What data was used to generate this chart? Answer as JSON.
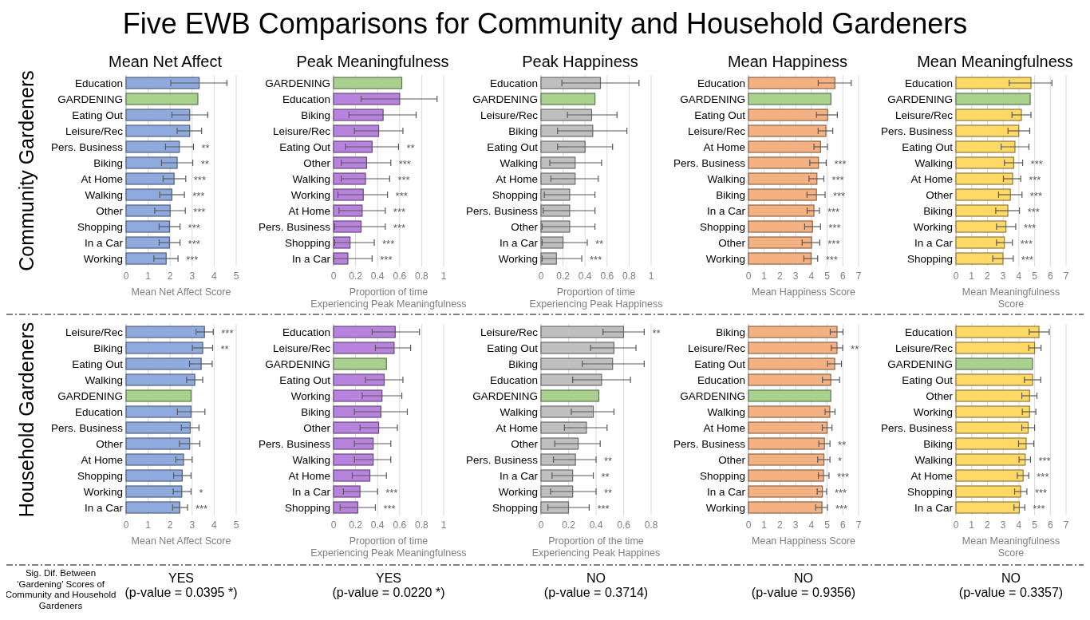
{
  "chart_data": [
    {
      "type": "bar",
      "orientation": "horizontal",
      "title": "Five EWB Comparisons for Community and Household Gardeners",
      "subtitle": "Mean Net Affect",
      "ylabel": "Community Gardeners",
      "xlabel": "Mean Net Affect Score",
      "grid": "x",
      "xlim": [
        0,
        5
      ],
      "xticks": [
        0,
        1,
        2,
        3,
        4,
        5
      ],
      "categories": [
        "Education",
        "GARDENING",
        "Eating Out",
        "Leisure/Rec",
        "Pers. Business",
        "Biking",
        "At Home",
        "Walking",
        "Other",
        "Shopping",
        "In a Car",
        "Working"
      ],
      "values": [
        3.32,
        3.26,
        2.89,
        2.89,
        2.42,
        2.32,
        2.18,
        2.08,
        2.0,
        1.97,
        1.97,
        1.82
      ],
      "errors": [
        [
          2.03,
          4.58
        ],
        null,
        [
          2.08,
          3.71
        ],
        [
          2.32,
          3.43
        ],
        [
          1.79,
          3.06
        ],
        [
          1.61,
          3.03
        ],
        [
          1.68,
          2.71
        ],
        [
          1.53,
          2.65
        ],
        [
          1.3,
          2.69
        ],
        [
          1.5,
          2.45
        ],
        [
          1.5,
          2.45
        ],
        [
          1.26,
          2.36
        ]
      ],
      "colors": [
        "#8faadc",
        "#a9d18e",
        "#8faadc",
        "#8faadc",
        "#8faadc",
        "#8faadc",
        "#8faadc",
        "#8faadc",
        "#8faadc",
        "#8faadc",
        "#8faadc",
        "#8faadc"
      ],
      "annotations": [
        {
          "text": "**",
          "x": 3.06,
          "y": "Pers. Business"
        },
        {
          "text": "**",
          "x": 3.03,
          "y": "Biking"
        },
        {
          "text": "***",
          "x": 2.71,
          "y": "At Home"
        },
        {
          "text": "***",
          "x": 2.65,
          "y": "Walking"
        },
        {
          "text": "***",
          "x": 2.69,
          "y": "Other"
        },
        {
          "text": "***",
          "x": 2.45,
          "y": "Shopping"
        },
        {
          "text": "***",
          "x": 2.45,
          "y": "In a Car"
        },
        {
          "text": "***",
          "x": 2.36,
          "y": "Working"
        }
      ]
    },
    {
      "type": "bar",
      "orientation": "horizontal",
      "title": "Peak Meaningfulness",
      "xlabel": "Proportion of time\nExperiencing Peak Meaningfulness",
      "grid": "x",
      "xlim": [
        0,
        1
      ],
      "xticks": [
        0,
        0.2,
        0.4,
        0.6,
        0.8,
        1
      ],
      "categories": [
        "GARDENING",
        "Education",
        "Biking",
        "Leisure/Rec",
        "Eating Out",
        "Other",
        "Walking",
        "Working",
        "At Home",
        "Pers. Business",
        "Shopping",
        "In a Car"
      ],
      "values": [
        0.62,
        0.6,
        0.45,
        0.41,
        0.35,
        0.3,
        0.29,
        0.27,
        0.26,
        0.25,
        0.15,
        0.13
      ],
      "errors": [
        null,
        [
          0.25,
          0.94
        ],
        [
          0.14,
          0.75
        ],
        [
          0.19,
          0.63
        ],
        [
          0.11,
          0.59
        ],
        [
          0.07,
          0.52
        ],
        [
          0.07,
          0.51
        ],
        [
          0.04,
          0.49
        ],
        [
          0.05,
          0.47
        ],
        [
          0.01,
          0.47
        ],
        [
          0.01,
          0.37
        ],
        [
          0.0,
          0.35
        ]
      ],
      "colors": [
        "#a9d18e",
        "#b883dc",
        "#b883dc",
        "#b883dc",
        "#b883dc",
        "#b883dc",
        "#b883dc",
        "#b883dc",
        "#b883dc",
        "#b883dc",
        "#b883dc",
        "#b883dc"
      ],
      "annotations": [
        {
          "text": "**",
          "x": 0.59,
          "y": "Eating Out"
        },
        {
          "text": "***",
          "x": 0.52,
          "y": "Other"
        },
        {
          "text": "***",
          "x": 0.51,
          "y": "Walking"
        },
        {
          "text": "***",
          "x": 0.49,
          "y": "Working"
        },
        {
          "text": "***",
          "x": 0.47,
          "y": "At Home"
        },
        {
          "text": "***",
          "x": 0.47,
          "y": "Pers. Business"
        },
        {
          "text": "***",
          "x": 0.37,
          "y": "Shopping"
        },
        {
          "text": "***",
          "x": 0.35,
          "y": "In a Car"
        }
      ]
    },
    {
      "type": "bar",
      "orientation": "horizontal",
      "title": "Peak Happiness",
      "xlabel": "Proportion of time\nExperiencing Peak Happiness",
      "grid": "x",
      "xlim": [
        0,
        1
      ],
      "xticks": [
        0,
        0.2,
        0.4,
        0.6,
        0.8,
        1
      ],
      "categories": [
        "Education",
        "GARDENING",
        "Leisure/Rec",
        "Biking",
        "Eating Out",
        "Walking",
        "At Home",
        "Shopping",
        "Pers. Business",
        "Other",
        "In a Car",
        "Working"
      ],
      "values": [
        0.54,
        0.49,
        0.46,
        0.47,
        0.4,
        0.31,
        0.31,
        0.26,
        0.26,
        0.26,
        0.2,
        0.14
      ],
      "errors": [
        [
          0.19,
          0.89
        ],
        null,
        [
          0.24,
          0.69
        ],
        [
          0.15,
          0.78
        ],
        [
          0.15,
          0.65
        ],
        [
          0.08,
          0.55
        ],
        [
          0.09,
          0.52
        ],
        [
          0.03,
          0.49
        ],
        [
          0.02,
          0.49
        ],
        [
          0.01,
          0.49
        ],
        [
          0.01,
          0.42
        ],
        [
          0.01,
          0.37
        ]
      ],
      "colors": [
        "#bfbfbf",
        "#a9d18e",
        "#bfbfbf",
        "#bfbfbf",
        "#bfbfbf",
        "#bfbfbf",
        "#bfbfbf",
        "#bfbfbf",
        "#bfbfbf",
        "#bfbfbf",
        "#bfbfbf",
        "#bfbfbf"
      ],
      "annotations": [
        {
          "text": "**",
          "x": 0.42,
          "y": "In a Car"
        },
        {
          "text": "***",
          "x": 0.37,
          "y": "Working"
        }
      ]
    },
    {
      "type": "bar",
      "orientation": "horizontal",
      "title": "Mean Happiness",
      "xlabel": "Mean Happiness Score",
      "grid": "x",
      "xlim": [
        0,
        7
      ],
      "xticks": [
        0,
        1,
        2,
        3,
        4,
        5,
        6,
        7
      ],
      "categories": [
        "Education",
        "GARDENING",
        "Eating Out",
        "Leisure/Rec",
        "At Home",
        "Pers. Business",
        "Walking",
        "Biking",
        "In a Car",
        "Shopping",
        "Other",
        "Working"
      ],
      "values": [
        5.49,
        5.24,
        5.03,
        4.92,
        4.58,
        4.45,
        4.35,
        4.32,
        4.16,
        4.07,
        4.01,
        3.98
      ],
      "errors": [
        [
          4.43,
          6.53
        ],
        null,
        [
          4.32,
          5.65
        ],
        [
          4.43,
          5.36
        ],
        [
          4.16,
          5.02
        ],
        [
          3.9,
          4.94
        ],
        [
          3.85,
          4.79
        ],
        [
          3.72,
          4.87
        ],
        [
          3.73,
          4.51
        ],
        [
          3.57,
          4.58
        ],
        [
          3.41,
          4.53
        ],
        [
          3.52,
          4.4
        ]
      ],
      "colors": [
        "#f4b183",
        "#a9d18e",
        "#f4b183",
        "#f4b183",
        "#f4b183",
        "#f4b183",
        "#f4b183",
        "#f4b183",
        "#f4b183",
        "#f4b183",
        "#f4b183",
        "#f4b183"
      ],
      "annotations": [
        {
          "text": "***",
          "x": 4.94,
          "y": "Pers. Business"
        },
        {
          "text": "***",
          "x": 4.79,
          "y": "Walking"
        },
        {
          "text": "***",
          "x": 4.87,
          "y": "Biking"
        },
        {
          "text": "***",
          "x": 4.51,
          "y": "In a Car"
        },
        {
          "text": "***",
          "x": 4.58,
          "y": "Shopping"
        },
        {
          "text": "***",
          "x": 4.53,
          "y": "Other"
        },
        {
          "text": "***",
          "x": 4.4,
          "y": "Working"
        }
      ]
    },
    {
      "type": "bar",
      "orientation": "horizontal",
      "title": "Mean Meaningfulness",
      "xlabel": "Mean Meaningfulness\nScore",
      "grid": "x",
      "xlim": [
        0,
        7
      ],
      "xticks": [
        0,
        1,
        2,
        3,
        4,
        5,
        6,
        7
      ],
      "categories": [
        "Education",
        "GARDENING",
        "Leisure/Rec",
        "Pers. Business",
        "Eating Out",
        "Walking",
        "At Home",
        "Other",
        "Biking",
        "Working",
        "In a Car",
        "Shopping"
      ],
      "values": [
        4.77,
        4.72,
        4.16,
        3.99,
        3.75,
        3.67,
        3.6,
        3.46,
        3.3,
        3.18,
        3.08,
        2.99
      ],
      "errors": [
        [
          3.39,
          6.1
        ],
        null,
        [
          3.56,
          4.77
        ],
        [
          3.31,
          4.69
        ],
        [
          2.87,
          4.64
        ],
        [
          3.08,
          4.24
        ],
        [
          3.02,
          4.12
        ],
        [
          2.71,
          4.2
        ],
        [
          2.53,
          4.04
        ],
        [
          2.58,
          3.8
        ],
        [
          2.58,
          3.59
        ],
        [
          2.34,
          3.64
        ]
      ],
      "colors": [
        "#ffd966",
        "#a9d18e",
        "#ffd966",
        "#ffd966",
        "#ffd966",
        "#ffd966",
        "#ffd966",
        "#ffd966",
        "#ffd966",
        "#ffd966",
        "#ffd966",
        "#ffd966"
      ],
      "annotations": [
        {
          "text": "***",
          "x": 4.24,
          "y": "Walking"
        },
        {
          "text": "***",
          "x": 4.12,
          "y": "At Home"
        },
        {
          "text": "***",
          "x": 4.2,
          "y": "Other"
        },
        {
          "text": "***",
          "x": 4.04,
          "y": "Biking"
        },
        {
          "text": "***",
          "x": 3.8,
          "y": "Working"
        },
        {
          "text": "***",
          "x": 3.59,
          "y": "In a Car"
        },
        {
          "text": "***",
          "x": 3.64,
          "y": "Shopping"
        }
      ]
    },
    {
      "type": "bar",
      "orientation": "horizontal",
      "ylabel": "Household Gardeners",
      "xlabel": "Mean Net Affect Score",
      "grid": "x",
      "xlim": [
        0,
        5
      ],
      "xticks": [
        0,
        1,
        2,
        3,
        4,
        5
      ],
      "categories": [
        "Leisure/Rec",
        "Biking",
        "Eating Out",
        "Walking",
        "GARDENING",
        "Education",
        "Pers. Business",
        "Other",
        "At Home",
        "Shopping",
        "Working",
        "In a Car"
      ],
      "values": [
        3.56,
        3.48,
        3.41,
        3.12,
        2.95,
        2.95,
        2.91,
        2.89,
        2.61,
        2.55,
        2.53,
        2.44
      ],
      "errors": [
        [
          3.18,
          3.96
        ],
        [
          3.01,
          3.93
        ],
        [
          2.88,
          3.91
        ],
        [
          2.75,
          3.48
        ],
        null,
        [
          2.33,
          3.58
        ],
        [
          2.51,
          3.31
        ],
        [
          2.42,
          3.35
        ],
        [
          2.26,
          3.0
        ],
        [
          2.16,
          2.95
        ],
        [
          2.14,
          2.95
        ],
        [
          2.11,
          2.79
        ]
      ],
      "colors": [
        "#8faadc",
        "#8faadc",
        "#8faadc",
        "#8faadc",
        "#a9d18e",
        "#8faadc",
        "#8faadc",
        "#8faadc",
        "#8faadc",
        "#8faadc",
        "#8faadc",
        "#8faadc"
      ],
      "annotations": [
        {
          "text": "***",
          "x": 3.96,
          "y": "Leisure/Rec"
        },
        {
          "text": "**",
          "x": 3.93,
          "y": "Biking"
        },
        {
          "text": "*",
          "x": 2.95,
          "y": "Working"
        },
        {
          "text": "***",
          "x": 2.79,
          "y": "In a Car"
        },
        "Sig. Dif. Between ‘Gardening’ Scores of Community and Household Gardeners",
        "YES\n(p-value = 0.0395 *)"
      ]
    },
    {
      "type": "bar",
      "orientation": "horizontal",
      "xlabel": "Proportion of time\nExperiencing Peak Meaningfulness",
      "grid": "x",
      "xlim": [
        0,
        1
      ],
      "xticks": [
        0,
        0.2,
        0.4,
        0.6,
        0.8,
        1
      ],
      "categories": [
        "Education",
        "Leisure/Rec",
        "GARDENING",
        "Eating Out",
        "Working",
        "Biking",
        "Other",
        "Pers. Business",
        "Walking",
        "At Home",
        "In a Car",
        "Shopping"
      ],
      "values": [
        0.56,
        0.55,
        0.48,
        0.46,
        0.44,
        0.43,
        0.41,
        0.36,
        0.36,
        0.33,
        0.24,
        0.22
      ],
      "errors": [
        [
          0.35,
          0.78
        ],
        [
          0.38,
          0.7
        ],
        null,
        [
          0.29,
          0.63
        ],
        [
          0.26,
          0.62
        ],
        [
          0.19,
          0.67
        ],
        [
          0.24,
          0.58
        ],
        [
          0.19,
          0.52
        ],
        [
          0.19,
          0.52
        ],
        [
          0.17,
          0.48
        ],
        [
          0.09,
          0.4
        ],
        [
          0.06,
          0.38
        ]
      ],
      "colors": [
        "#b883dc",
        "#b883dc",
        "#a9d18e",
        "#b883dc",
        "#b883dc",
        "#b883dc",
        "#b883dc",
        "#b883dc",
        "#b883dc",
        "#b883dc",
        "#b883dc",
        "#b883dc"
      ],
      "annotations": [
        {
          "text": "***",
          "x": 0.4,
          "y": "In a Car"
        },
        {
          "text": "***",
          "x": 0.38,
          "y": "Shopping"
        },
        "YES\n(p-value = 0.0220 *)"
      ]
    },
    {
      "type": "bar",
      "orientation": "horizontal",
      "xlabel": "Proportion of the  time\nExperiencing Peak Happines",
      "grid": "x",
      "xlim": [
        0,
        0.8
      ],
      "xticks": [
        0,
        0.2,
        0.4,
        0.6,
        0.8
      ],
      "categories": [
        "Leisure/Rec",
        "Eating Out",
        "Biking",
        "Education",
        "GARDENING",
        "Walking",
        "At Home",
        "Other",
        "Pers. Business",
        "In a Car",
        "Working",
        "Shopping"
      ],
      "values": [
        0.6,
        0.53,
        0.52,
        0.44,
        0.42,
        0.38,
        0.33,
        0.27,
        0.25,
        0.23,
        0.23,
        0.2
      ],
      "errors": [
        [
          0.45,
          0.75
        ],
        [
          0.36,
          0.69
        ],
        [
          0.3,
          0.75
        ],
        [
          0.23,
          0.65
        ],
        null,
        [
          0.22,
          0.53
        ],
        [
          0.17,
          0.48
        ],
        [
          0.1,
          0.43
        ],
        [
          0.09,
          0.4
        ],
        [
          0.08,
          0.38
        ],
        [
          0.07,
          0.4
        ],
        [
          0.05,
          0.35
        ]
      ],
      "colors": [
        "#bfbfbf",
        "#bfbfbf",
        "#bfbfbf",
        "#bfbfbf",
        "#a9d18e",
        "#bfbfbf",
        "#bfbfbf",
        "#bfbfbf",
        "#bfbfbf",
        "#bfbfbf",
        "#bfbfbf",
        "#bfbfbf"
      ],
      "annotations": [
        {
          "text": "**",
          "x": 0.75,
          "y": "Leisure/Rec"
        },
        {
          "text": "**",
          "x": 0.4,
          "y": "Pers. Business"
        },
        {
          "text": "**",
          "x": 0.38,
          "y": "In a Car"
        },
        {
          "text": "**",
          "x": 0.4,
          "y": "Working"
        },
        {
          "text": "***",
          "x": 0.35,
          "y": "Shopping"
        },
        "NO\n(p-value = 0.3714)"
      ]
    },
    {
      "type": "bar",
      "orientation": "horizontal",
      "xlabel": "Mean Happiness Score",
      "grid": "x",
      "xlim": [
        0,
        7
      ],
      "xticks": [
        0,
        1,
        2,
        3,
        4,
        5,
        6,
        7
      ],
      "categories": [
        "Biking",
        "Leisure/Rec",
        "Eating Out",
        "Education",
        "GARDENING",
        "Walking",
        "At Home",
        "Pers. Business",
        "Other",
        "Shopping",
        "In a Car",
        "Working"
      ],
      "values": [
        5.63,
        5.63,
        5.48,
        5.23,
        5.23,
        5.17,
        5.0,
        4.83,
        4.8,
        4.77,
        4.7,
        4.67
      ],
      "errors": [
        [
          5.2,
          6.01
        ],
        [
          5.26,
          5.99
        ],
        [
          5.02,
          5.91
        ],
        [
          4.7,
          5.79
        ],
        null,
        [
          4.87,
          5.5
        ],
        [
          4.69,
          5.31
        ],
        [
          4.47,
          5.18
        ],
        [
          4.4,
          5.18
        ],
        [
          4.44,
          5.12
        ],
        [
          4.37,
          4.97
        ],
        [
          4.27,
          5.02
        ]
      ],
      "colors": [
        "#f4b183",
        "#f4b183",
        "#f4b183",
        "#f4b183",
        "#a9d18e",
        "#f4b183",
        "#f4b183",
        "#f4b183",
        "#f4b183",
        "#f4b183",
        "#f4b183",
        "#f4b183"
      ],
      "annotations": [
        {
          "text": "**",
          "x": 5.99,
          "y": "Leisure/Rec"
        },
        {
          "text": "**",
          "x": 5.18,
          "y": "Pers. Business"
        },
        {
          "text": "*",
          "x": 5.18,
          "y": "Other"
        },
        {
          "text": "***",
          "x": 5.12,
          "y": "Shopping"
        },
        {
          "text": "***",
          "x": 4.97,
          "y": "In a Car"
        },
        {
          "text": "***",
          "x": 5.02,
          "y": "Working"
        },
        "NO\n(p-value = 0.9356)"
      ]
    },
    {
      "type": "bar",
      "orientation": "horizontal",
      "xlabel": "Mean Meaningfulness\nScore",
      "grid": "x",
      "xlim": [
        0,
        7
      ],
      "xticks": [
        0,
        1,
        2,
        3,
        4,
        5,
        6,
        7
      ],
      "categories": [
        "Education",
        "Leisure/Rec",
        "GARDENING",
        "Eating Out",
        "Other",
        "Working",
        "Pers. Business",
        "Biking",
        "Walking",
        "At Home",
        "Shopping",
        "In a Car"
      ],
      "values": [
        5.28,
        5.0,
        4.87,
        4.87,
        4.68,
        4.68,
        4.59,
        4.46,
        4.4,
        4.27,
        4.11,
        4.03
      ],
      "errors": [
        [
          4.66,
          5.93
        ],
        [
          4.63,
          5.41
        ],
        null,
        [
          4.35,
          5.39
        ],
        [
          4.19,
          5.15
        ],
        [
          4.22,
          5.08
        ],
        [
          4.19,
          5.0
        ],
        [
          3.98,
          4.95
        ],
        [
          4.01,
          4.74
        ],
        [
          3.9,
          4.63
        ],
        [
          3.73,
          4.51
        ],
        [
          3.69,
          4.38
        ]
      ],
      "colors": [
        "#ffd966",
        "#ffd966",
        "#a9d18e",
        "#ffd966",
        "#ffd966",
        "#ffd966",
        "#ffd966",
        "#ffd966",
        "#ffd966",
        "#ffd966",
        "#ffd966",
        "#ffd966"
      ],
      "annotations": [
        {
          "text": "***",
          "x": 4.74,
          "y": "Walking"
        },
        {
          "text": "***",
          "x": 4.63,
          "y": "At Home"
        },
        {
          "text": "***",
          "x": 4.51,
          "y": "Shopping"
        },
        {
          "text": "***",
          "x": 4.38,
          "y": "In a Car"
        },
        "NO\n(p-value = 0.3357)"
      ]
    }
  ]
}
